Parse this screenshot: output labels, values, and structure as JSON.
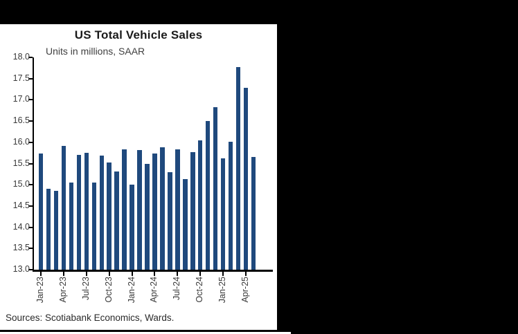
{
  "title": "US Total Vehicle Sales",
  "subtitle": "Units in millions, SAAR",
  "source_note": "Sources: Scotiabank Economics, Wards.",
  "colors": {
    "bar": "#1f497d",
    "axis": "#000000",
    "panel_background": "#ffffff",
    "outer_background": "#000000",
    "label_text": "#3a3a3a"
  },
  "chart_data": {
    "type": "bar",
    "title": "US Total Vehicle Sales",
    "subtitle": "Units in millions, SAAR",
    "categories": [
      "Jan-23",
      "Feb-23",
      "Mar-23",
      "Apr-23",
      "May-23",
      "Jun-23",
      "Jul-23",
      "Aug-23",
      "Sep-23",
      "Oct-23",
      "Nov-23",
      "Dec-23",
      "Jan-24",
      "Feb-24",
      "Mar-24",
      "Apr-24",
      "May-24",
      "Jun-24",
      "Jul-24",
      "Aug-24",
      "Sep-24",
      "Oct-24",
      "Nov-24",
      "Dec-24",
      "Jan-25",
      "Feb-25",
      "Mar-25",
      "Apr-25",
      "May-25"
    ],
    "values": [
      15.74,
      14.9,
      14.85,
      15.92,
      15.05,
      15.7,
      15.75,
      15.05,
      15.68,
      15.52,
      15.32,
      15.84,
      15.0,
      15.82,
      15.5,
      15.74,
      15.89,
      15.29,
      15.83,
      15.14,
      15.77,
      16.04,
      16.51,
      16.82,
      15.62,
      16.02,
      17.78,
      17.28,
      15.65
    ],
    "x_tick_labels": [
      "Jan-23",
      "Apr-23",
      "Jul-23",
      "Oct-23",
      "Jan-24",
      "Apr-24",
      "Jul-24",
      "Oct-24",
      "Jan-25",
      "Apr-25"
    ],
    "x_tick_every": 3,
    "xlabel": "",
    "ylabel": "",
    "ylim": [
      13.0,
      18.0
    ],
    "ytick_step": 0.5,
    "ytick_format_decimals": 1,
    "grid": false,
    "legend": "none"
  }
}
